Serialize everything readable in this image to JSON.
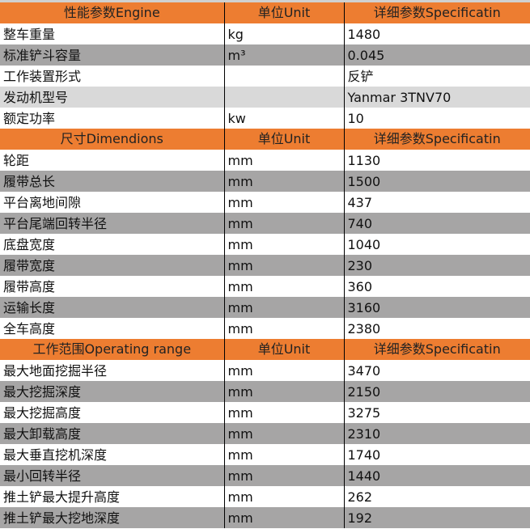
{
  "colors": {
    "header": "#ED7D31",
    "row_dark": "#A6A5A5",
    "row_light": "#D9D9D9"
  },
  "sections": [
    {
      "title": "性能参数Engine",
      "unit_header": "单位Unit",
      "spec_header": "详细参数Specificatin",
      "rows": [
        {
          "name": "整车重量",
          "unit": "kg",
          "value": "1480",
          "shade": "none"
        },
        {
          "name": "标准铲斗容量",
          "unit": "m³",
          "value": "0.045",
          "shade": "dark"
        },
        {
          "name": "工作装置形式",
          "unit": "",
          "value": "反铲",
          "shade": "none"
        },
        {
          "name": "发动机型号",
          "unit": "",
          "value": "Yanmar 3TNV70",
          "shade": "light"
        },
        {
          "name": "额定功率",
          "unit": "kw",
          "value": "10",
          "shade": "none"
        }
      ]
    },
    {
      "title": "尺寸Dimendions",
      "unit_header": "单位Unit",
      "spec_header": "详细参数Specificatin",
      "rows": [
        {
          "name": "轮距",
          "unit": "mm",
          "value": "1130",
          "shade": "none"
        },
        {
          "name": "履带总长",
          "unit": "mm",
          "value": "1500",
          "shade": "dark"
        },
        {
          "name": "平台离地间隙",
          "unit": "mm",
          "value": "437",
          "shade": "none"
        },
        {
          "name": "平台尾端回转半径",
          "unit": "mm",
          "value": "740",
          "shade": "dark"
        },
        {
          "name": "底盘宽度",
          "unit": "mm",
          "value": "1040",
          "shade": "none"
        },
        {
          "name": "履带宽度",
          "unit": "mm",
          "value": "230",
          "shade": "dark"
        },
        {
          "name": "履带高度",
          "unit": "mm",
          "value": "360",
          "shade": "none"
        },
        {
          "name": "运输长度",
          "unit": "mm",
          "value": "3160",
          "shade": "dark"
        },
        {
          "name": "全车高度",
          "unit": "mm",
          "value": "2380",
          "shade": "none"
        }
      ]
    },
    {
      "title": "工作范围Operating range",
      "unit_header": "单位Unit",
      "spec_header": "详细参数Specificatin",
      "rows": [
        {
          "name": "最大地面挖掘半径",
          "unit": "mm",
          "value": "3470",
          "shade": "none"
        },
        {
          "name": "最大挖掘深度",
          "unit": "mm",
          "value": "2150",
          "shade": "dark"
        },
        {
          "name": "最大挖掘高度",
          "unit": "mm",
          "value": "3275",
          "shade": "none"
        },
        {
          "name": "最大卸载高度",
          "unit": "mm",
          "value": "2310",
          "shade": "dark"
        },
        {
          "name": "最大垂直挖机深度",
          "unit": "mm",
          "value": "1740",
          "shade": "none"
        },
        {
          "name": "最小回转半径",
          "unit": "mm",
          "value": "1440",
          "shade": "dark"
        },
        {
          "name": "推土铲最大提升高度",
          "unit": "mm",
          "value": "262",
          "shade": "none"
        },
        {
          "name": "推土铲最大挖地深度",
          "unit": "mm",
          "value": "192",
          "shade": "dark"
        }
      ]
    }
  ]
}
